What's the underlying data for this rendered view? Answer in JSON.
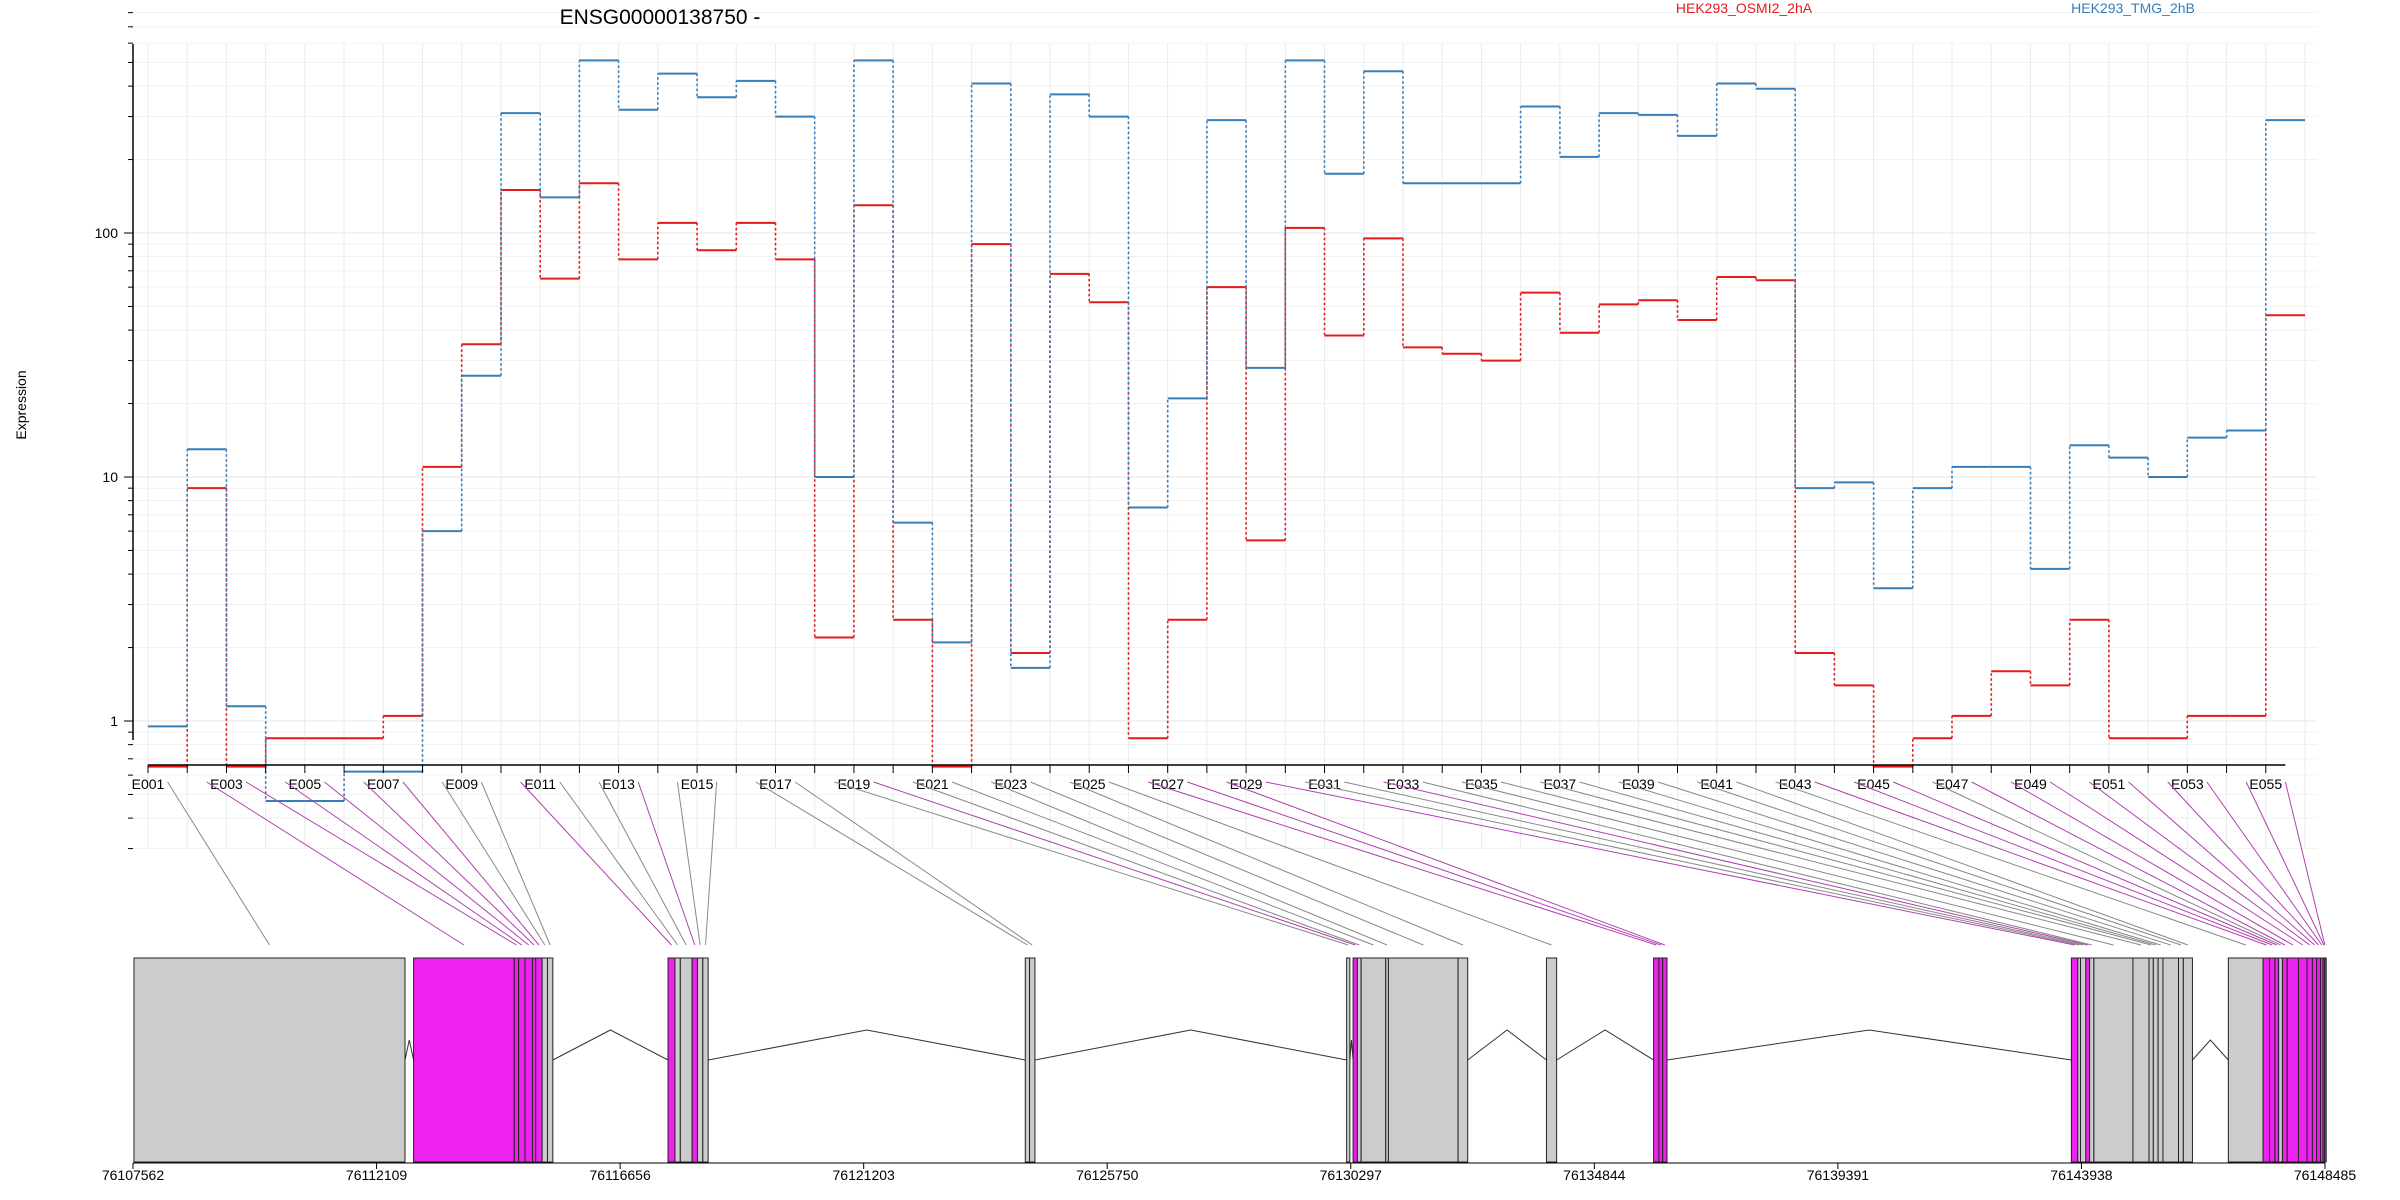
{
  "chart_data": {
    "type": "line",
    "title": "ENSG00000138750 -",
    "ylabel": "Expression",
    "xlabel": "",
    "y_scale": "log",
    "ylim": [
      0.3,
      800
    ],
    "y_ticks": [
      1,
      10,
      100
    ],
    "y_tick_labels": [
      "1",
      "10",
      "100"
    ],
    "grid": true,
    "legend": "top-right",
    "x_tick_labels": [
      "E001",
      "E003",
      "E005",
      "E007",
      "E009",
      "E011",
      "E013",
      "E015",
      "E017",
      "E019",
      "E021",
      "E023",
      "E025",
      "E027",
      "E029",
      "E031",
      "E033",
      "E035",
      "E037",
      "E039",
      "E041",
      "E043",
      "E045",
      "E047",
      "E049",
      "E051",
      "E053",
      "E055"
    ],
    "bins": [
      "E001",
      "E002",
      "E003",
      "E004",
      "E005",
      "E006",
      "E007",
      "E008",
      "E009",
      "E010",
      "E011",
      "E012",
      "E013",
      "E014",
      "E015",
      "E016",
      "E017",
      "E018",
      "E019",
      "E020",
      "E021",
      "E022",
      "E023",
      "E024",
      "E025",
      "E026",
      "E027",
      "E028",
      "E029",
      "E030",
      "E031",
      "E032",
      "E033",
      "E034",
      "E035",
      "E036",
      "E037",
      "E038",
      "E039",
      "E040",
      "E041",
      "E042",
      "E043",
      "E044",
      "E045",
      "E046",
      "E047",
      "E048",
      "E049",
      "E050",
      "E051",
      "E052",
      "E053",
      "E054",
      "E055"
    ],
    "series": [
      {
        "name": "HEK293_OSMI2_2hA",
        "color": "#e41a1c",
        "values": [
          0.65,
          9,
          0.65,
          0.85,
          0.85,
          0.85,
          1.05,
          11,
          35,
          150,
          65,
          160,
          78,
          110,
          85,
          110,
          78,
          2.2,
          130,
          2.6,
          0.65,
          90,
          1.9,
          68,
          52,
          0.85,
          2.6,
          60,
          5.5,
          105,
          38,
          95,
          34,
          32,
          30,
          57,
          39,
          51,
          53,
          44,
          66,
          64,
          1.9,
          1.4,
          0.65,
          0.85,
          1.05,
          1.6,
          1.4,
          2.6,
          0.85,
          0.85,
          1.05,
          1.05,
          46
        ]
      },
      {
        "name": "HEK293_TMG_2hB",
        "color": "#377eb8",
        "values": [
          0.95,
          13,
          1.15,
          0.47,
          0.47,
          0.62,
          0.62,
          6,
          26,
          310,
          140,
          510,
          320,
          450,
          360,
          420,
          300,
          10,
          510,
          6.5,
          2.1,
          410,
          1.65,
          370,
          300,
          7.5,
          21,
          290,
          28,
          510,
          175,
          460,
          160,
          160,
          160,
          330,
          205,
          310,
          305,
          250,
          410,
          390,
          9,
          9.5,
          3.5,
          9,
          11,
          11,
          4.2,
          13.5,
          12,
          10,
          14.5,
          15.5,
          290
        ]
      }
    ],
    "gene_axis": {
      "labels": [
        "76107562",
        "76112109",
        "76116656",
        "76121203",
        "76125750",
        "76130297",
        "76134844",
        "76139391",
        "76143938",
        "76148485"
      ]
    },
    "exon_bins": [
      {
        "start": 76107580,
        "end": 76112640,
        "type": "grey"
      },
      {
        "start": 76112800,
        "end": 76114680,
        "type": "magenta"
      },
      {
        "start": 76114680,
        "end": 76114760,
        "type": "magenta"
      },
      {
        "start": 76114760,
        "end": 76114880,
        "type": "magenta"
      },
      {
        "start": 76114880,
        "end": 76115020,
        "type": "magenta"
      },
      {
        "start": 76115020,
        "end": 76115080,
        "type": "magenta"
      },
      {
        "start": 76115080,
        "end": 76115200,
        "type": "magenta"
      },
      {
        "start": 76115200,
        "end": 76115300,
        "type": "grey"
      },
      {
        "start": 76115300,
        "end": 76115400,
        "type": "grey"
      },
      {
        "start": 76117550,
        "end": 76117680,
        "type": "magenta"
      },
      {
        "start": 76117680,
        "end": 76117780,
        "type": "grey"
      },
      {
        "start": 76117780,
        "end": 76118000,
        "type": "grey"
      },
      {
        "start": 76118000,
        "end": 76118100,
        "type": "magenta"
      },
      {
        "start": 76118100,
        "end": 76118200,
        "type": "grey"
      },
      {
        "start": 76118200,
        "end": 76118300,
        "type": "grey"
      },
      {
        "start": 76124220,
        "end": 76124300,
        "type": "grey"
      },
      {
        "start": 76124300,
        "end": 76124400,
        "type": "grey"
      },
      {
        "start": 76130220,
        "end": 76130280,
        "type": "grey"
      },
      {
        "start": 76130340,
        "end": 76130420,
        "type": "magenta"
      },
      {
        "start": 76130420,
        "end": 76130490,
        "type": "grey"
      },
      {
        "start": 76130490,
        "end": 76130950,
        "type": "grey"
      },
      {
        "start": 76130950,
        "end": 76131000,
        "type": "grey"
      },
      {
        "start": 76131000,
        "end": 76132300,
        "type": "grey"
      },
      {
        "start": 76132300,
        "end": 76132480,
        "type": "grey"
      },
      {
        "start": 76133950,
        "end": 76134140,
        "type": "grey"
      },
      {
        "start": 76135950,
        "end": 76136050,
        "type": "magenta"
      },
      {
        "start": 76136050,
        "end": 76136120,
        "type": "magenta"
      },
      {
        "start": 76136120,
        "end": 76136200,
        "type": "magenta"
      },
      {
        "start": 76143750,
        "end": 76143870,
        "type": "magenta"
      },
      {
        "start": 76143870,
        "end": 76143920,
        "type": "grey"
      },
      {
        "start": 76143920,
        "end": 76144020,
        "type": "grey"
      },
      {
        "start": 76144020,
        "end": 76144090,
        "type": "magenta"
      },
      {
        "start": 76144090,
        "end": 76144170,
        "type": "grey"
      },
      {
        "start": 76144170,
        "end": 76144900,
        "type": "grey"
      },
      {
        "start": 76144900,
        "end": 76145200,
        "type": "grey"
      },
      {
        "start": 76145200,
        "end": 76145280,
        "type": "grey"
      },
      {
        "start": 76145280,
        "end": 76145370,
        "type": "grey"
      },
      {
        "start": 76145370,
        "end": 76145460,
        "type": "grey"
      },
      {
        "start": 76145460,
        "end": 76145750,
        "type": "grey"
      },
      {
        "start": 76145750,
        "end": 76145840,
        "type": "grey"
      },
      {
        "start": 76145840,
        "end": 76146010,
        "type": "grey"
      },
      {
        "start": 76146680,
        "end": 76147330,
        "type": "grey"
      },
      {
        "start": 76147330,
        "end": 76147450,
        "type": "magenta"
      },
      {
        "start": 76147450,
        "end": 76147550,
        "type": "magenta"
      },
      {
        "start": 76147550,
        "end": 76147620,
        "type": "magenta"
      },
      {
        "start": 76147620,
        "end": 76147690,
        "type": "grey"
      },
      {
        "start": 76147690,
        "end": 76147780,
        "type": "magenta"
      },
      {
        "start": 76147780,
        "end": 76147990,
        "type": "magenta"
      },
      {
        "start": 76147990,
        "end": 76148150,
        "type": "magenta"
      },
      {
        "start": 76148150,
        "end": 76148250,
        "type": "magenta"
      },
      {
        "start": 76148250,
        "end": 76148330,
        "type": "magenta"
      },
      {
        "start": 76148330,
        "end": 76148400,
        "type": "magenta"
      },
      {
        "start": 76148400,
        "end": 76148450,
        "type": "magenta"
      },
      {
        "start": 76148450,
        "end": 76148480,
        "type": "magenta"
      },
      {
        "start": 76148480,
        "end": 76148485,
        "type": "magenta"
      }
    ],
    "colors": {
      "grey_exon": "#cccccc",
      "magenta_exon": "#ee22ee",
      "grid": "#ebebeb"
    }
  }
}
